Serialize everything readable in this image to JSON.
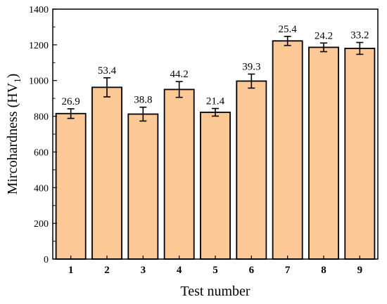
{
  "chart_data": {
    "type": "bar",
    "categories": [
      "1",
      "2",
      "3",
      "4",
      "5",
      "6",
      "7",
      "8",
      "9"
    ],
    "values": [
      815,
      962,
      812,
      950,
      822,
      997,
      1222,
      1186,
      1180
    ],
    "errors": [
      26.9,
      53.4,
      38.8,
      44.2,
      21.4,
      39.3,
      25.4,
      24.2,
      33.2
    ],
    "data_labels": [
      "26.9",
      "53.4",
      "38.8",
      "44.2",
      "21.4",
      "39.3",
      "25.4",
      "24.2",
      "33.2"
    ],
    "title": "",
    "xlabel": "Test number",
    "ylabel_main": "Mircohardness (HV",
    "ylabel_sub": "1",
    "ylabel_end": ")",
    "ylim": [
      0,
      1400
    ],
    "yticks": [
      0,
      200,
      400,
      600,
      800,
      1000,
      1200,
      1400
    ],
    "grid": false,
    "bar_color": "#FCC896",
    "bar_edge_color": "#000000"
  }
}
